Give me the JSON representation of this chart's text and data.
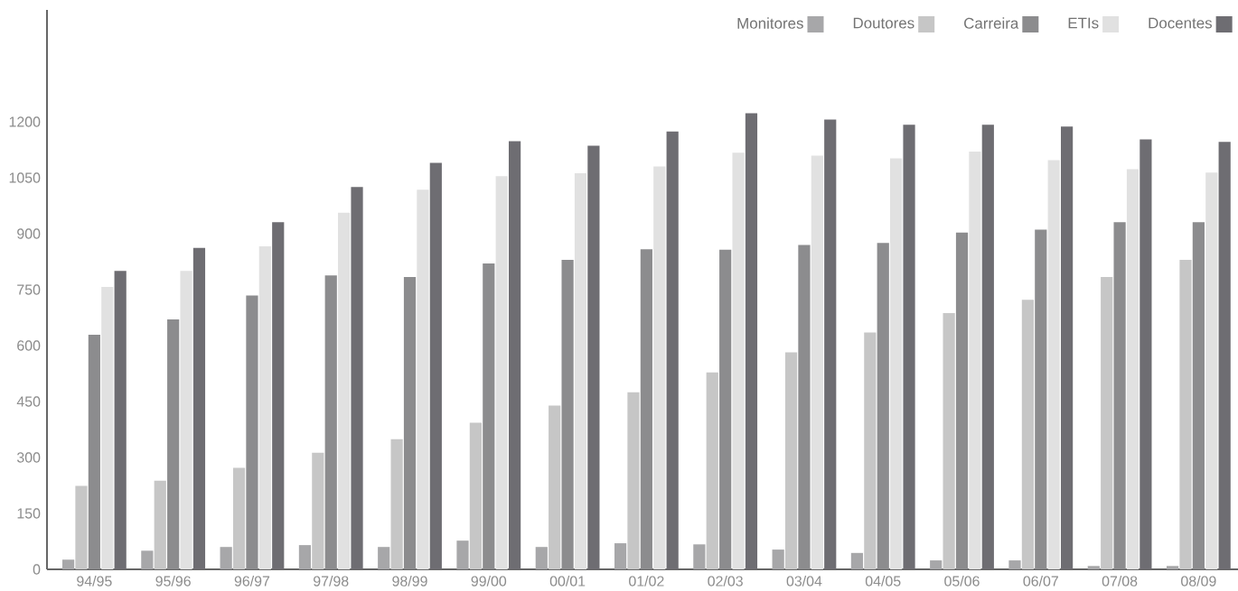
{
  "chart_data": {
    "type": "bar",
    "categories": [
      "94/95",
      "95/96",
      "96/97",
      "97/98",
      "98/99",
      "99/00",
      "00/01",
      "01/02",
      "02/03",
      "03/04",
      "04/05",
      "05/06",
      "06/07",
      "07/08",
      "08/09"
    ],
    "series": [
      {
        "name": "Monitores",
        "color": "#a7a7a9",
        "values": [
          26,
          50,
          60,
          65,
          60,
          77,
          60,
          70,
          67,
          53,
          44,
          24,
          24,
          9,
          9
        ]
      },
      {
        "name": "Doutores",
        "color": "#c6c6c6",
        "values": [
          224,
          238,
          272,
          313,
          349,
          393,
          439,
          475,
          528,
          582,
          635,
          687,
          723,
          784,
          830
        ]
      },
      {
        "name": "Carreira",
        "color": "#8c8c8e",
        "values": [
          629,
          670,
          734,
          788,
          784,
          820,
          830,
          858,
          857,
          870,
          875,
          903,
          911,
          931,
          931
        ]
      },
      {
        "name": "ETIs",
        "color": "#e1e1e1",
        "values": [
          757,
          800,
          866,
          956,
          1018,
          1054,
          1062,
          1080,
          1117,
          1109,
          1102,
          1120,
          1097,
          1073,
          1064
        ]
      },
      {
        "name": "Docentes",
        "color": "#6e6d72",
        "values": [
          800,
          862,
          931,
          1025,
          1090,
          1148,
          1136,
          1174,
          1223,
          1206,
          1192,
          1192,
          1187,
          1153,
          1146
        ]
      }
    ],
    "ylim": [
      0,
      1500
    ],
    "yticks": [
      0,
      150,
      300,
      450,
      600,
      750,
      900,
      1050,
      1200
    ],
    "grid": false,
    "legend": "top right"
  }
}
